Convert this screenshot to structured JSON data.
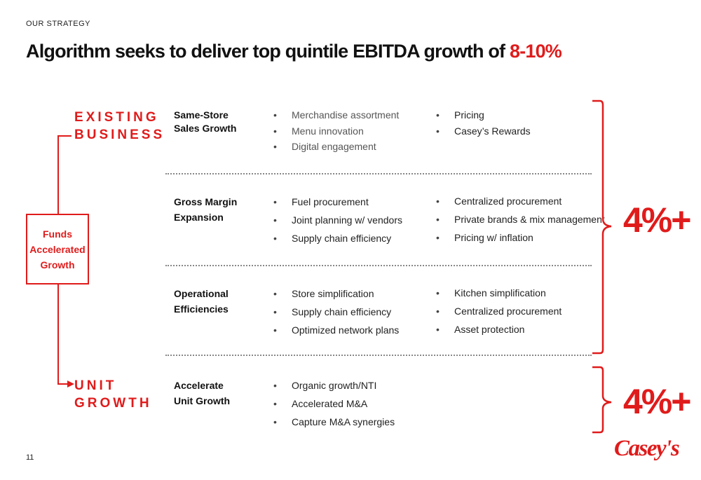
{
  "eyebrow": "OUR STRATEGY",
  "title": {
    "text": "Algorithm seeks to deliver top quintile EBITDA growth of ",
    "highlight": "8-10%"
  },
  "existing_business": {
    "line1": "EXISTING",
    "line2": "BUSINESS"
  },
  "unit_growth": {
    "line1": "UNIT",
    "line2": "GROWTH"
  },
  "funds_box": {
    "line1": "Funds",
    "line2": "Accelerated",
    "line3": "Growth"
  },
  "rows": [
    {
      "title_1": "Same-Store",
      "title_2": "Sales Growth",
      "col1": [
        "Merchandise assortment",
        "Menu innovation",
        "Digital engagement"
      ],
      "col2": [
        "Pricing",
        "Casey’s Rewards"
      ]
    },
    {
      "title_1": "Gross Margin",
      "title_2": "Expansion",
      "col1": [
        "Fuel procurement",
        "Joint planning w/ vendors",
        "Supply chain efficiency"
      ],
      "col2": [
        "Centralized procurement",
        "Private brands & mix management",
        "Pricing w/ inflation"
      ]
    },
    {
      "title_1": "Operational",
      "title_2": "Efficiencies",
      "col1": [
        "Store simplification",
        "Supply chain efficiency",
        "Optimized network plans"
      ],
      "col2": [
        "Kitchen simplification",
        "Centralized procurement",
        "Asset protection"
      ]
    },
    {
      "title_1": "Accelerate",
      "title_2": "Unit Growth",
      "col1": [
        "Organic growth/NTI",
        "Accelerated M&A",
        "Capture M&A synergies"
      ]
    }
  ],
  "pct_existing": "4%+",
  "pct_unit": "4%+",
  "page_number": "11",
  "logo_text": "Casey's",
  "colors": {
    "accent": "#e01b1b"
  }
}
